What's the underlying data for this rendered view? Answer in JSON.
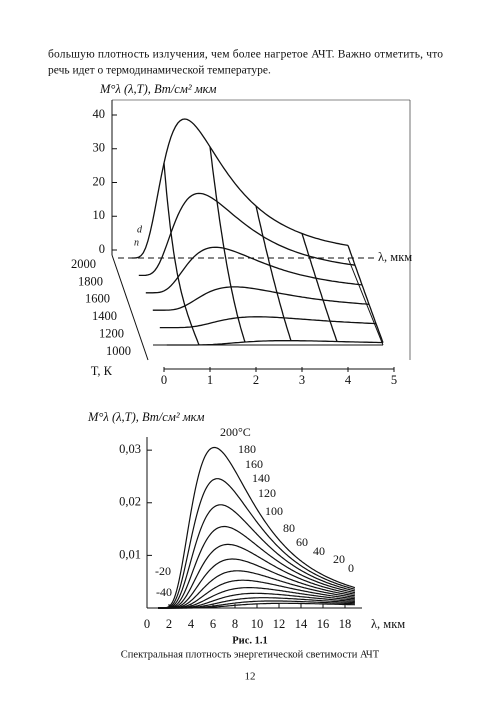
{
  "text": {
    "lines": [
      "большую плотность излучения, чем более нагретое АЧТ. Важно отметить, что",
      "речь идет о термодинамической температуре."
    ]
  },
  "figure_3d": {
    "zlabel": "M°λ (λ,T), Вт/см² мкм",
    "zticks": [
      0,
      10,
      20,
      30,
      40
    ],
    "tticks": [
      1000,
      1200,
      1400,
      1600,
      1800,
      2000
    ],
    "tlabel": "T, К",
    "xticks": [
      0,
      1,
      2,
      3,
      4,
      5
    ],
    "xlabel": "λ, мкм",
    "annotations": [
      "d",
      "n"
    ]
  },
  "chart_data": {
    "type": "line",
    "ylabel": "M°λ (λ,T), Вт/см² мкм",
    "xlabel": "λ, мкм",
    "xlim": [
      0,
      20
    ],
    "xticks": [
      0,
      2,
      4,
      6,
      8,
      10,
      12,
      14,
      16,
      18
    ],
    "ylim": [
      0,
      0.0325
    ],
    "yticks": [
      {
        "value": 0.01,
        "label": "0,01"
      },
      {
        "value": 0.02,
        "label": "0,02"
      },
      {
        "value": 0.03,
        "label": "0,03"
      }
    ],
    "temperatures": [
      {
        "value": 200,
        "label": "200°C"
      },
      180,
      160,
      140,
      120,
      100,
      80,
      60,
      40,
      20,
      0,
      -20,
      -40
    ]
  },
  "caption": {
    "number": "Рис. 1.1",
    "text": "Спектральная плотность энергетической светимости АЧТ"
  },
  "page_number": "12"
}
